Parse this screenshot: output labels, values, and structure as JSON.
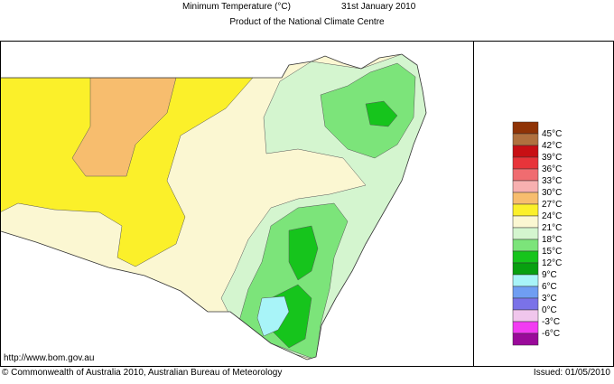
{
  "header": {
    "title": "Minimum Temperature (°C)",
    "date": "31st January 2010",
    "subtitle": "Product of the National Climate Centre"
  },
  "legend": {
    "labels": [
      "45°C",
      "42°C",
      "39°C",
      "36°C",
      "33°C",
      "30°C",
      "27°C",
      "24°C",
      "21°C",
      "18°C",
      "15°C",
      "12°C",
      "9°C",
      "6°C",
      "3°C",
      "0°C",
      "-3°C",
      "-6°C"
    ],
    "colors": [
      "#8f3306",
      "#b0703e",
      "#c80f14",
      "#e8343a",
      "#f06c70",
      "#f7b0b0",
      "#f7bd6e",
      "#fbf02a",
      "#fbf7d2",
      "#d4f5cf",
      "#7ce47a",
      "#16c41c",
      "#08a010",
      "#a8f4f8",
      "#6f9ef2",
      "#7a72e8",
      "#f0c6ec",
      "#f23cf2",
      "#9a0a9a"
    ]
  },
  "footer": {
    "url": "http://www.bom.gov.au",
    "copyright": "© Commonwealth of Australia 2010, Australian Bureau of Meteorology",
    "issued": "Issued: 01/05/2010"
  }
}
